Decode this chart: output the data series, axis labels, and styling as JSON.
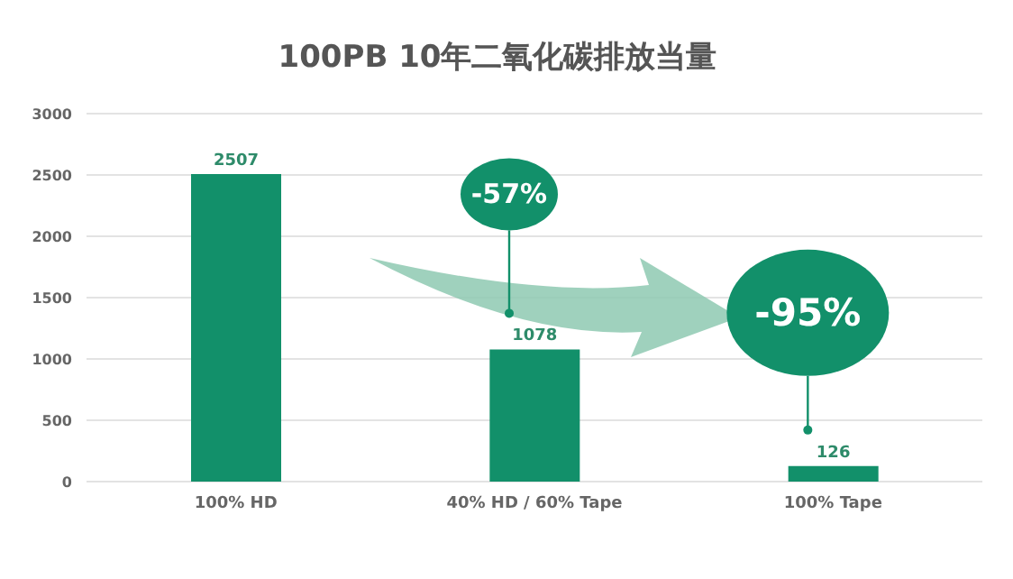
{
  "chart_data": {
    "type": "bar",
    "title": "100PB 10年二氧化碳排放当量",
    "categories": [
      "100% HD",
      "40% HD / 60% Tape",
      "100% Tape"
    ],
    "values": [
      2507,
      1078,
      126
    ],
    "color": "#12906a",
    "ylim": [
      0,
      3000
    ],
    "yticks": [
      0,
      500,
      1000,
      1500,
      2000,
      2500,
      3000
    ],
    "grid": "y",
    "data_labels": true,
    "annotations": [
      "-57%",
      "-95%"
    ]
  }
}
